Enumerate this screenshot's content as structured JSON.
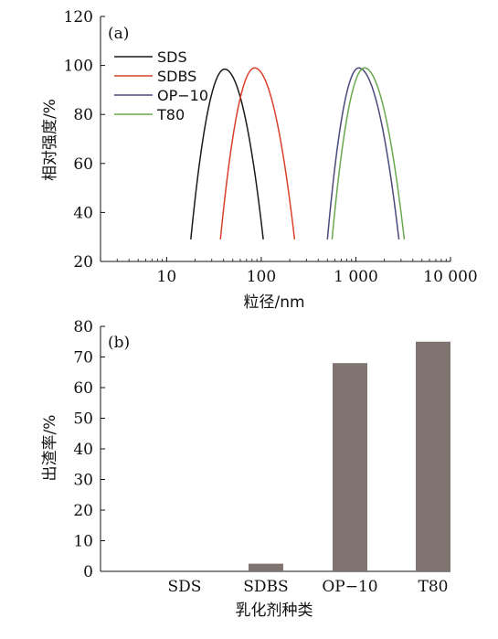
{
  "chart_data": [
    {
      "type": "line",
      "panel_label": "(a)",
      "title": "",
      "xlabel": "粒径/nm",
      "ylabel": "相对强度/%",
      "xscale": "log",
      "xlim": [
        2,
        10000
      ],
      "ylim": [
        20,
        120
      ],
      "xticks": [
        10,
        100,
        1000,
        10000
      ],
      "xtick_labels": [
        "10",
        "100",
        "1 000",
        "10 000"
      ],
      "yticks": [
        20,
        40,
        60,
        80,
        100,
        120
      ],
      "ytick_labels": [
        "20",
        "40",
        "60",
        "80",
        "100",
        "120"
      ],
      "grid": false,
      "legend_position": "top-left",
      "series": [
        {
          "name": "SDS",
          "color": "#1a1a1a",
          "x": [
            18,
            41,
            105
          ],
          "y": [
            29,
            98.5,
            29
          ]
        },
        {
          "name": "SDBS",
          "color": "#d9402b",
          "x": [
            37,
            85,
            225
          ],
          "y": [
            29,
            99,
            29
          ]
        },
        {
          "name": "OP−10",
          "color": "#4a4a7a",
          "x": [
            500,
            1070,
            2850
          ],
          "y": [
            29,
            99,
            29
          ]
        },
        {
          "name": "T80",
          "color": "#6aa84f",
          "x": [
            560,
            1230,
            3250
          ],
          "y": [
            29,
            99,
            29
          ]
        }
      ]
    },
    {
      "type": "bar",
      "panel_label": "(b)",
      "title": "",
      "xlabel": "乳化剂种类",
      "ylabel": "出渣率/%",
      "categories": [
        "SDS",
        "SDBS",
        "OP−10",
        "T80"
      ],
      "values": [
        0,
        2.5,
        68,
        75
      ],
      "bar_color": "#807470",
      "ylim": [
        0,
        80
      ],
      "yticks": [
        0,
        10,
        20,
        30,
        40,
        50,
        60,
        70,
        80
      ],
      "ytick_labels": [
        "0",
        "10",
        "20",
        "30",
        "40",
        "50",
        "60",
        "70",
        "80"
      ],
      "grid": false
    }
  ]
}
